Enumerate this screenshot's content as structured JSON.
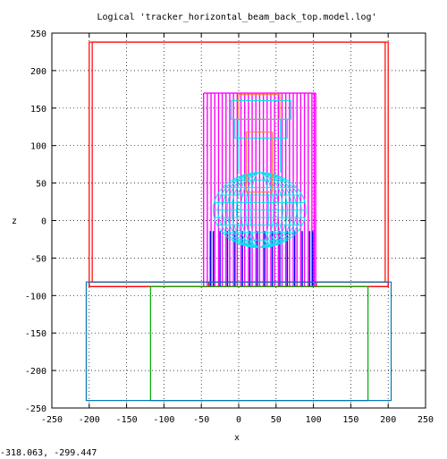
{
  "chart_data": {
    "type": "line",
    "title": "Logical 'tracker_horizontal_beam_back_top.model.log'",
    "xlabel": "x",
    "ylabel": "z",
    "xlim": [
      -250,
      250
    ],
    "ylim": [
      -250,
      250
    ],
    "xticks": [
      -250,
      -200,
      -150,
      -100,
      -50,
      0,
      50,
      100,
      150,
      200,
      250
    ],
    "yticks": [
      -250,
      -200,
      -150,
      -100,
      -50,
      0,
      50,
      100,
      150,
      200,
      250
    ],
    "grid": true,
    "series": [
      {
        "color": "#ff0000",
        "rects": [
          [
            -200,
            -88,
            200,
            238
          ],
          [
            -196,
            -82,
            196,
            238
          ],
          [
            -200,
            -88,
            200,
            -82
          ],
          [
            -40,
            -88,
            104,
            -82
          ]
        ]
      },
      {
        "color": "#ff00ff",
        "verticals_x": [
          -47,
          -42,
          -37,
          -32,
          -27,
          -22,
          -17,
          -12,
          -7,
          -2,
          3,
          8,
          13,
          18,
          23,
          28,
          33,
          38,
          43,
          48,
          53,
          58,
          63,
          68,
          73,
          78,
          83,
          88,
          93,
          98,
          101,
          103
        ],
        "verticals_y": [
          -88,
          170
        ],
        "top_y": 170
      },
      {
        "color": "#0000ff",
        "verticals_x": [
          -38,
          -34,
          -25,
          -15,
          -5,
          5,
          15,
          25,
          35,
          45,
          55,
          65,
          75,
          85,
          95,
          99
        ],
        "verticals_y": [
          -88,
          -14
        ]
      },
      {
        "color": "#00e5ee",
        "rects": [
          [
            -10,
            135,
            70,
            160
          ],
          [
            -5,
            110,
            65,
            135
          ]
        ],
        "bulb": {
          "cx": 28,
          "cy": 14,
          "rx": 62,
          "ry": 50
        }
      },
      {
        "color": "#ff7f3a",
        "rects": [
          [
            0,
            135,
            55,
            168
          ],
          [
            10,
            38,
            45,
            118
          ]
        ]
      },
      {
        "color": "#00aa00",
        "rects": [
          [
            -118,
            -88,
            173,
            -240
          ]
        ]
      },
      {
        "color": "#0077bb",
        "rects": [
          [
            -204,
            -82,
            204,
            -240
          ]
        ]
      }
    ]
  },
  "readout": "-318.063, -299.447"
}
